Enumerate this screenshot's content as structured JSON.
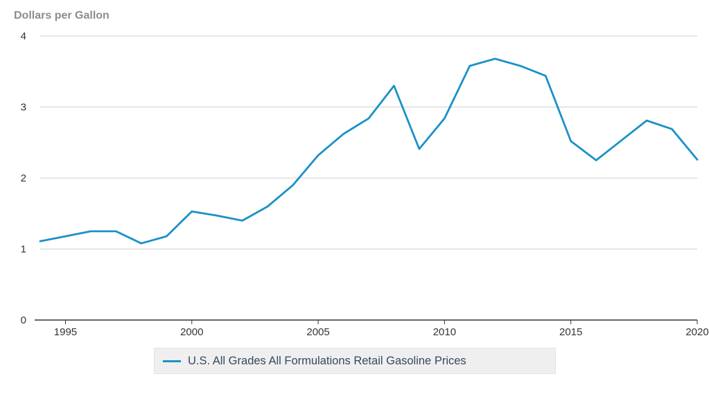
{
  "chart_data": {
    "type": "line",
    "title": "",
    "ylabel": "Dollars per Gallon",
    "xlabel": "",
    "xlim": [
      1994,
      2020
    ],
    "ylim": [
      0,
      4
    ],
    "x_ticks": [
      "1995",
      "2000",
      "2005",
      "2010",
      "2015",
      "2020"
    ],
    "y_ticks": [
      "0",
      "1",
      "2",
      "3",
      "4"
    ],
    "grid": true,
    "legend_position": "bottom-center",
    "series": [
      {
        "name": "U.S. All Grades All Formulations Retail Gasoline Prices",
        "color": "#1a91c7",
        "x": [
          1994,
          1995,
          1996,
          1997,
          1998,
          1999,
          2000,
          2001,
          2002,
          2003,
          2004,
          2005,
          2006,
          2007,
          2008,
          2009,
          2010,
          2011,
          2012,
          2013,
          2014,
          2015,
          2016,
          2017,
          2018,
          2019,
          2020
        ],
        "values": [
          1.11,
          1.18,
          1.25,
          1.25,
          1.08,
          1.18,
          1.53,
          1.47,
          1.4,
          1.6,
          1.9,
          2.32,
          2.62,
          2.84,
          3.3,
          2.41,
          2.84,
          3.58,
          3.68,
          3.58,
          3.44,
          2.52,
          2.25,
          2.53,
          2.81,
          2.69,
          2.26
        ]
      }
    ]
  }
}
